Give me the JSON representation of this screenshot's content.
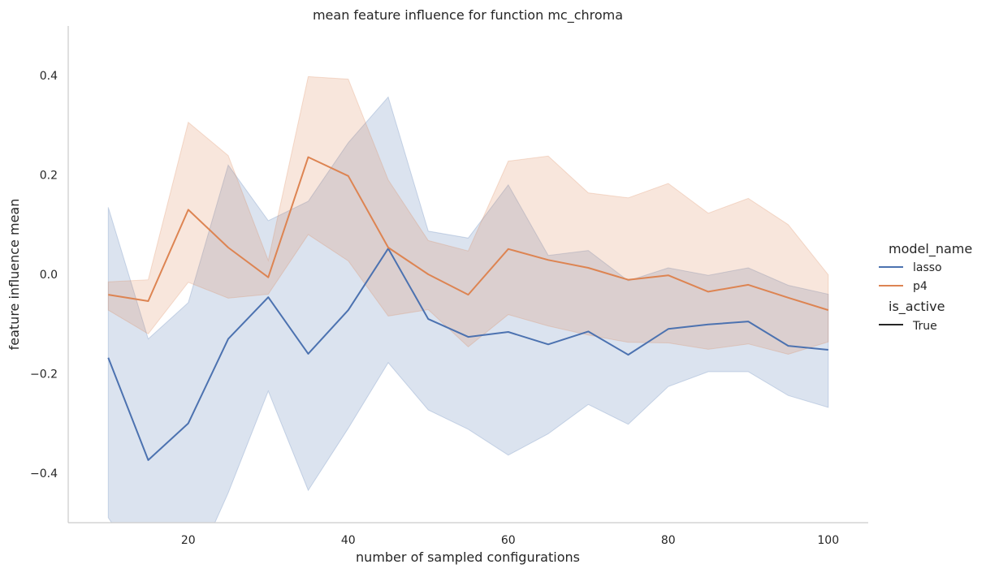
{
  "chart_data": {
    "type": "line",
    "title": "mean feature influence for function mc_chroma",
    "xlabel": "number of sampled configurations",
    "ylabel": "feature influence mean",
    "xlim": [
      5,
      105
    ],
    "ylim": [
      -0.5,
      0.5
    ],
    "x_ticks": [
      20,
      40,
      60,
      80,
      100
    ],
    "y_ticks": [
      -0.4,
      -0.2,
      0.0,
      0.2,
      0.4
    ],
    "x_tick_labels": [
      "20",
      "40",
      "60",
      "80",
      "100"
    ],
    "y_tick_labels": [
      "−0.4",
      "−0.2",
      "0.0",
      "0.2",
      "0.4"
    ],
    "grid": false,
    "legend_position": "right",
    "legend": {
      "hue_title": "model_name",
      "style_title": "is_active",
      "style_entries": [
        {
          "label": "True",
          "color": "#262626"
        }
      ]
    },
    "x": [
      10,
      15,
      20,
      25,
      30,
      35,
      40,
      45,
      50,
      55,
      60,
      65,
      70,
      75,
      80,
      85,
      90,
      95,
      100
    ],
    "series": [
      {
        "name": "lasso",
        "color": "#4c72b0",
        "values": [
          -0.168,
          -0.374,
          -0.3,
          -0.13,
          -0.046,
          -0.16,
          -0.072,
          0.052,
          -0.09,
          -0.126,
          -0.116,
          -0.141,
          -0.115,
          -0.162,
          -0.11,
          -0.101,
          -0.095,
          -0.144,
          -0.152
        ],
        "lower": [
          -0.49,
          -0.61,
          -0.62,
          -0.44,
          -0.235,
          -0.435,
          -0.31,
          -0.178,
          -0.273,
          -0.312,
          -0.364,
          -0.321,
          -0.262,
          -0.302,
          -0.226,
          -0.196,
          -0.196,
          -0.244,
          -0.268
        ],
        "upper": [
          0.135,
          -0.13,
          -0.057,
          0.22,
          0.108,
          0.147,
          0.265,
          0.357,
          0.087,
          0.073,
          0.18,
          0.038,
          0.048,
          -0.013,
          0.013,
          -0.002,
          0.013,
          -0.022,
          -0.04
        ]
      },
      {
        "name": "p4",
        "color": "#dd8452",
        "values": [
          -0.041,
          -0.054,
          0.13,
          0.054,
          -0.006,
          0.236,
          0.198,
          0.054,
          0.0,
          -0.041,
          0.051,
          0.029,
          0.013,
          -0.011,
          -0.002,
          -0.035,
          -0.021,
          -0.047,
          -0.072
        ],
        "lower": [
          -0.072,
          -0.12,
          -0.016,
          -0.048,
          -0.04,
          0.08,
          0.027,
          -0.084,
          -0.071,
          -0.146,
          -0.081,
          -0.104,
          -0.122,
          -0.137,
          -0.138,
          -0.151,
          -0.14,
          -0.161,
          -0.136
        ],
        "upper": [
          -0.015,
          -0.011,
          0.306,
          0.239,
          0.028,
          0.398,
          0.393,
          0.19,
          0.068,
          0.047,
          0.228,
          0.238,
          0.164,
          0.154,
          0.183,
          0.123,
          0.153,
          0.1,
          -0.001
        ]
      }
    ]
  }
}
